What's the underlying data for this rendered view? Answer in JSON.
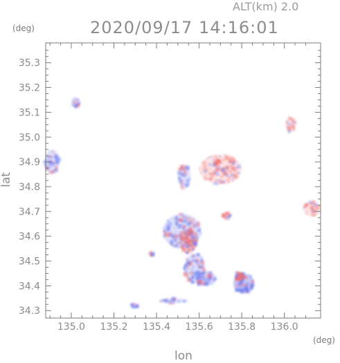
{
  "header": {
    "altitude": "ALT(km) 2.0",
    "timestamp": "2020/09/17 14:16:01"
  },
  "axes": {
    "x_unit": "(deg)",
    "y_unit": "(deg)",
    "x_label": "lon",
    "y_label": "lat",
    "x_range": [
      134.88,
      136.17
    ],
    "y_range": [
      34.27,
      35.38
    ],
    "x_ticks": [
      "135.0",
      "135.2",
      "135.4",
      "135.6",
      "135.8",
      "136.0"
    ],
    "x_tick_values": [
      135.0,
      135.2,
      135.4,
      135.6,
      135.8,
      136.0
    ],
    "y_ticks": [
      "35.3",
      "35.2",
      "35.1",
      "35.0",
      "34.9",
      "34.8",
      "34.7",
      "34.6",
      "34.5",
      "34.4",
      "34.3"
    ],
    "y_tick_values": [
      35.3,
      35.2,
      35.1,
      35.0,
      34.9,
      34.8,
      34.7,
      34.6,
      34.5,
      34.4,
      34.3
    ]
  },
  "colors": {
    "approaching": "#6f7ff0",
    "receding": "#f07070",
    "frame": "#7a7a7a"
  },
  "chart_data": {
    "type": "heatmap",
    "description_free": true,
    "patches": [
      {
        "lon": 134.91,
        "lat": 34.9,
        "rx": 0.035,
        "ry": 0.05,
        "tone": "approaching",
        "level": 0.35
      },
      {
        "lon": 135.02,
        "lat": 35.14,
        "rx": 0.02,
        "ry": 0.02,
        "tone": "approaching",
        "level": 0.5
      },
      {
        "lon": 136.03,
        "lat": 35.05,
        "rx": 0.025,
        "ry": 0.03,
        "tone": "receding",
        "level": 0.3
      },
      {
        "lon": 135.7,
        "lat": 34.87,
        "rx": 0.1,
        "ry": 0.06,
        "tone": "receding",
        "level": 0.25
      },
      {
        "lon": 136.13,
        "lat": 34.71,
        "rx": 0.04,
        "ry": 0.03,
        "tone": "receding",
        "level": 0.3
      },
      {
        "lon": 135.52,
        "lat": 34.62,
        "rx": 0.09,
        "ry": 0.07,
        "tone": "approaching",
        "level": 0.35
      },
      {
        "lon": 135.55,
        "lat": 34.58,
        "rx": 0.04,
        "ry": 0.05,
        "tone": "receding",
        "level": 0.45
      },
      {
        "lon": 135.58,
        "lat": 34.47,
        "rx": 0.05,
        "ry": 0.06,
        "tone": "approaching",
        "level": 0.35
      },
      {
        "lon": 135.63,
        "lat": 34.43,
        "rx": 0.05,
        "ry": 0.03,
        "tone": "approaching",
        "level": 0.4
      },
      {
        "lon": 135.81,
        "lat": 34.41,
        "rx": 0.05,
        "ry": 0.04,
        "tone": "approaching",
        "level": 0.6
      },
      {
        "lon": 135.79,
        "lat": 34.44,
        "rx": 0.02,
        "ry": 0.015,
        "tone": "receding",
        "level": 0.6
      },
      {
        "lon": 135.3,
        "lat": 34.32,
        "rx": 0.02,
        "ry": 0.01,
        "tone": "approaching",
        "level": 0.4
      },
      {
        "lon": 135.48,
        "lat": 34.34,
        "rx": 0.07,
        "ry": 0.01,
        "tone": "approaching",
        "level": 0.3
      },
      {
        "lon": 135.53,
        "lat": 34.84,
        "rx": 0.03,
        "ry": 0.05,
        "tone": "approaching",
        "level": 0.3
      },
      {
        "lon": 135.73,
        "lat": 34.68,
        "rx": 0.02,
        "ry": 0.015,
        "tone": "receding",
        "level": 0.4
      },
      {
        "lon": 135.38,
        "lat": 34.53,
        "rx": 0.015,
        "ry": 0.01,
        "tone": "approaching",
        "level": 0.4
      }
    ]
  }
}
